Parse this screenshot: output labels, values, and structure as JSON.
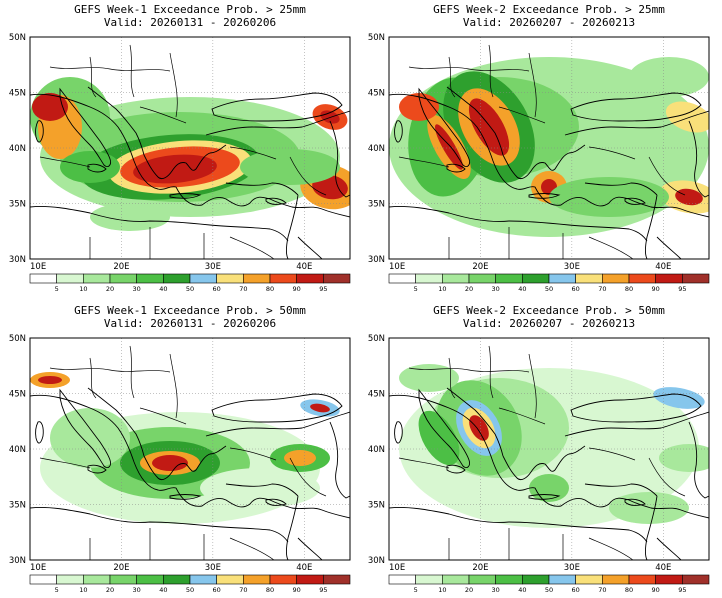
{
  "panels": [
    {
      "title": "GEFS Week-1 Exceedance Prob. > 25mm",
      "valid": "Valid: 20260131 - 20260206"
    },
    {
      "title": "GEFS Week-2 Exceedance Prob. > 25mm",
      "valid": "Valid: 20260207 - 20260213"
    },
    {
      "title": "GEFS Week-1 Exceedance Prob. > 50mm",
      "valid": "Valid: 20260131 - 20260206"
    },
    {
      "title": "GEFS Week-2 Exceedance Prob. > 50mm",
      "valid": "Valid: 20260207 - 20260213"
    }
  ],
  "lat_labels": [
    "50N",
    "45N",
    "40N",
    "35N",
    "30N"
  ],
  "lon_labels": [
    "10E",
    "20E",
    "30E",
    "40E"
  ],
  "colorbar": {
    "labels": [
      "5",
      "10",
      "20",
      "30",
      "40",
      "50",
      "60",
      "70",
      "80",
      "90",
      "95"
    ],
    "colors": [
      "#ffffff",
      "#d8f7d1",
      "#a8e89c",
      "#78d46a",
      "#4cbf45",
      "#2ea02e",
      "#86c6ec",
      "#f9e07a",
      "#f4a12a",
      "#ec4a1c",
      "#c11a14",
      "#a0302a"
    ]
  }
}
